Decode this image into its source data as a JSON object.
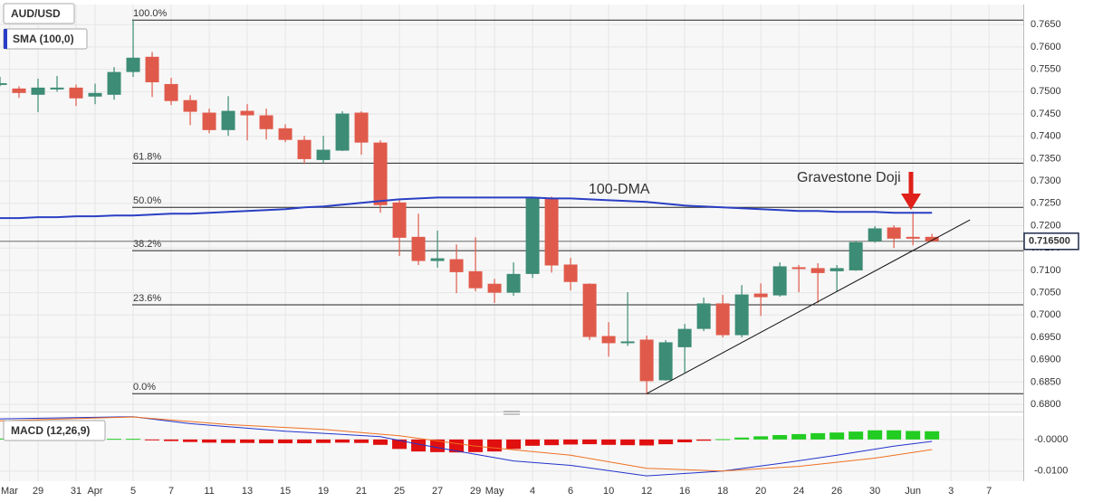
{
  "chart_data": [
    {
      "type": "candlestick",
      "title": "AUD/USD",
      "up_color": "#3d8c75",
      "down_color": "#e05a4b",
      "open": [
        0.7518,
        0.7506,
        0.7494,
        0.7508,
        0.7508,
        0.749,
        0.7494,
        0.7545,
        0.7577,
        0.7516,
        0.748,
        0.7452,
        0.7415,
        0.7456,
        0.7446,
        0.7417,
        0.7391,
        0.7348,
        0.7369,
        0.7452,
        0.7385,
        0.7251,
        0.7174,
        0.7122,
        0.7124,
        0.7097,
        0.7069,
        0.7051,
        0.7093,
        0.7261,
        0.7112,
        0.7069,
        0.6952,
        0.6938,
        0.6944,
        0.6855,
        0.6929,
        0.697,
        0.7025,
        0.6956,
        0.7047,
        0.7045,
        0.7106,
        0.7104,
        0.7099,
        0.7101,
        0.7166,
        0.7195,
        0.7174,
        0.7174
      ],
      "high": [
        0.7533,
        0.7512,
        0.7529,
        0.7535,
        0.7516,
        0.7518,
        0.7555,
        0.766,
        0.7589,
        0.7531,
        0.7492,
        0.7462,
        0.749,
        0.7472,
        0.7462,
        0.7427,
        0.7401,
        0.7401,
        0.7456,
        0.7456,
        0.7391,
        0.7259,
        0.7227,
        0.7189,
        0.7158,
        0.7174,
        0.7081,
        0.7118,
        0.7265,
        0.7265,
        0.7128,
        0.7071,
        0.6984,
        0.7051,
        0.6954,
        0.6944,
        0.698,
        0.7039,
        0.7045,
        0.7067,
        0.7071,
        0.7118,
        0.7112,
        0.7116,
        0.7112,
        0.7166,
        0.7199,
        0.7201,
        0.7231,
        0.7182
      ],
      "low": [
        0.7512,
        0.7486,
        0.7454,
        0.75,
        0.7468,
        0.7472,
        0.7482,
        0.7533,
        0.7488,
        0.747,
        0.7425,
        0.7407,
        0.7401,
        0.7391,
        0.7393,
        0.7387,
        0.7338,
        0.734,
        0.7367,
        0.7359,
        0.7229,
        0.7132,
        0.7112,
        0.7106,
        0.7049,
        0.7053,
        0.7027,
        0.7043,
        0.7083,
        0.7095,
        0.7055,
        0.6944,
        0.6907,
        0.6931,
        0.6822,
        0.6853,
        0.6871,
        0.6964,
        0.695,
        0.695,
        0.6998,
        0.7041,
        0.7051,
        0.7027,
        0.7053,
        0.7099,
        0.7162,
        0.715,
        0.7156,
        0.7164
      ],
      "close": [
        0.7518,
        0.7498,
        0.7508,
        0.7508,
        0.7486,
        0.7496,
        0.7543,
        0.7575,
        0.7522,
        0.748,
        0.7456,
        0.7415,
        0.7456,
        0.7448,
        0.7417,
        0.7393,
        0.735,
        0.7369,
        0.745,
        0.7387,
        0.7247,
        0.7174,
        0.7122,
        0.7126,
        0.7097,
        0.7061,
        0.7051,
        0.7091,
        0.7261,
        0.7112,
        0.7075,
        0.6952,
        0.6938,
        0.694,
        0.6853,
        0.6938,
        0.6968,
        0.7025,
        0.6956,
        0.7045,
        0.7041,
        0.7108,
        0.7104,
        0.7095,
        0.7104,
        0.7162,
        0.7193,
        0.7172,
        0.7172,
        0.7166
      ],
      "series": [
        {
          "name": "SMA (100,0)",
          "color": "#2a3fc4",
          "values": [
            0.7217,
            0.7217,
            0.7219,
            0.7219,
            0.7221,
            0.7221,
            0.7223,
            0.7223,
            0.7225,
            0.7227,
            0.7227,
            0.7229,
            0.7231,
            0.7233,
            0.7235,
            0.7237,
            0.7241,
            0.7243,
            0.7247,
            0.7251,
            0.7255,
            0.7259,
            0.7261,
            0.7263,
            0.7263,
            0.7263,
            0.7263,
            0.7263,
            0.7263,
            0.7261,
            0.7261,
            0.7259,
            0.7257,
            0.7255,
            0.7253,
            0.7249,
            0.7245,
            0.7243,
            0.7241,
            0.7239,
            0.7237,
            0.7235,
            0.7233,
            0.7233,
            0.7231,
            0.7231,
            0.7231,
            0.7229,
            0.7229,
            0.7229
          ]
        }
      ],
      "fib_levels": [
        {
          "label": "100.0%",
          "value": 0.766
        },
        {
          "label": "61.8%",
          "value": 0.734
        },
        {
          "label": "50.0%",
          "value": 0.7241
        },
        {
          "label": "38.2%",
          "value": 0.7144
        },
        {
          "label": "23.6%",
          "value": 0.7023
        },
        {
          "label": "0.0%",
          "value": 0.6824
        }
      ],
      "annotations": [
        {
          "text": "100-DMA",
          "color": "#5a4fcf"
        },
        {
          "text": "Gravestone Doji",
          "color": "#d8362a"
        }
      ],
      "trendline": {
        "x": [
          34,
          51
        ],
        "values": [
          0.6824,
          0.7213
        ]
      },
      "last_price": {
        "value": 0.7165,
        "label": "0.716500"
      },
      "xlim": [
        0,
        53.8
      ],
      "xticks": [
        {
          "value": 0.5,
          "label": "Mar"
        },
        {
          "value": 2,
          "label": "29"
        },
        {
          "value": 4,
          "label": "31"
        },
        {
          "value": 5,
          "label": "Apr"
        },
        {
          "value": 7,
          "label": "5"
        },
        {
          "value": 9,
          "label": "7"
        },
        {
          "value": 11,
          "label": "11"
        },
        {
          "value": 13,
          "label": "13"
        },
        {
          "value": 15,
          "label": "15"
        },
        {
          "value": 17,
          "label": "19"
        },
        {
          "value": 19,
          "label": "21"
        },
        {
          "value": 21,
          "label": "25"
        },
        {
          "value": 23,
          "label": "27"
        },
        {
          "value": 25,
          "label": "29"
        },
        {
          "value": 26,
          "label": "May"
        },
        {
          "value": 28,
          "label": "4"
        },
        {
          "value": 30,
          "label": "6"
        },
        {
          "value": 32,
          "label": "10"
        },
        {
          "value": 34,
          "label": "12"
        },
        {
          "value": 36,
          "label": "16"
        },
        {
          "value": 38,
          "label": "18"
        },
        {
          "value": 40,
          "label": "20"
        },
        {
          "value": 42,
          "label": "24"
        },
        {
          "value": 44,
          "label": "26"
        },
        {
          "value": 46,
          "label": "30"
        },
        {
          "value": 48,
          "label": "Jun"
        },
        {
          "value": 50,
          "label": "3"
        },
        {
          "value": 52,
          "label": "7"
        }
      ],
      "ylim": [
        0.6784,
        0.7695
      ],
      "yticks": [
        {
          "value": 0.68,
          "label": "0.6800"
        },
        {
          "value": 0.685,
          "label": "0.6850"
        },
        {
          "value": 0.69,
          "label": "0.6900"
        },
        {
          "value": 0.695,
          "label": "0.6950"
        },
        {
          "value": 0.7,
          "label": "0.7000"
        },
        {
          "value": 0.705,
          "label": "0.7050"
        },
        {
          "value": 0.71,
          "label": "0.7100"
        },
        {
          "value": 0.715,
          "label": "0.7150"
        },
        {
          "value": 0.72,
          "label": "0.7200"
        },
        {
          "value": 0.725,
          "label": "0.7250"
        },
        {
          "value": 0.73,
          "label": "0.7300"
        },
        {
          "value": 0.735,
          "label": "0.7350"
        },
        {
          "value": 0.74,
          "label": "0.7400"
        },
        {
          "value": 0.745,
          "label": "0.7450"
        },
        {
          "value": 0.75,
          "label": "0.7500"
        },
        {
          "value": 0.755,
          "label": "0.7550"
        },
        {
          "value": 0.76,
          "label": "0.7600"
        },
        {
          "value": 0.765,
          "label": "0.7650"
        }
      ],
      "grid": true
    },
    {
      "type": "macd",
      "title": "MACD (12,26,9)",
      "histogram": {
        "up_color": "#22cc22",
        "down_color": "#e01010",
        "values": [
          0.0003,
          0.0003,
          0.0003,
          0.0002,
          0.0002,
          0.0002,
          0.0002,
          0.0002,
          -0.0002,
          -0.0005,
          -0.0008,
          -0.001,
          -0.0011,
          -0.0011,
          -0.0012,
          -0.0012,
          -0.0012,
          -0.0011,
          -0.001,
          -0.0011,
          -0.0017,
          -0.003,
          -0.0038,
          -0.004,
          -0.0041,
          -0.004,
          -0.0038,
          -0.003,
          -0.002,
          -0.0018,
          -0.0016,
          -0.0015,
          -0.0017,
          -0.0018,
          -0.0019,
          -0.0015,
          -0.0009,
          -0.0004,
          0.0001,
          0.0006,
          0.001,
          0.0014,
          0.0017,
          0.002,
          0.0022,
          0.0025,
          0.0029,
          0.0029,
          0.0027,
          0.0026
        ]
      },
      "series": [
        {
          "color": "#2233cc",
          "x": [
            0,
            7,
            10,
            15,
            20,
            22,
            25,
            27,
            30,
            34,
            38,
            41,
            44,
            47,
            49
          ],
          "values": [
            0.0065,
            0.0072,
            0.005,
            0.0026,
            0.0009,
            -0.0015,
            -0.0047,
            -0.0068,
            -0.0082,
            -0.0115,
            -0.01,
            -0.0076,
            -0.005,
            -0.0021,
            -0.0006
          ]
        },
        {
          "color": "#f07020",
          "x": [
            0,
            7,
            12,
            17,
            21,
            25,
            30,
            34,
            38,
            42,
            46,
            49
          ],
          "values": [
            0.0059,
            0.0071,
            0.0047,
            0.0032,
            0.0012,
            -0.0021,
            -0.005,
            -0.0091,
            -0.01,
            -0.0085,
            -0.0059,
            -0.0032
          ]
        }
      ],
      "xlim": [
        0,
        53.8
      ],
      "ylim": [
        -0.0132,
        0.0074
      ],
      "yticks": [
        {
          "value": 0,
          "label": "-0.0000"
        },
        {
          "value": -0.01,
          "label": "-0.0100"
        }
      ],
      "grid": true
    }
  ]
}
